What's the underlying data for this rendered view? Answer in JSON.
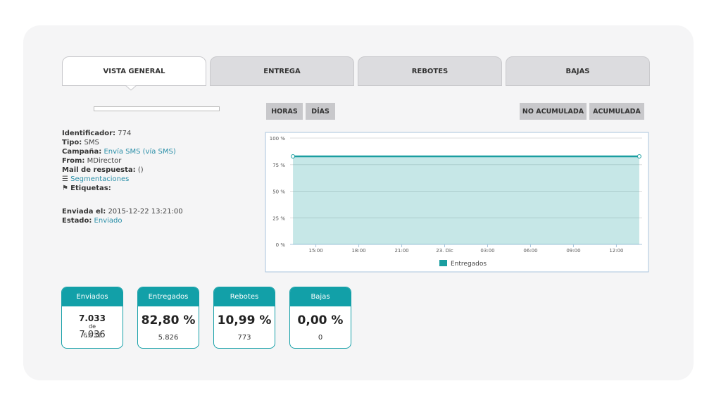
{
  "tabs": [
    "VISTA GENERAL",
    "ENTREGA",
    "REBOTES",
    "BAJAS"
  ],
  "buttons": {
    "left": [
      "HORAS",
      "DÍAS"
    ],
    "right": [
      "NO ACUMULADA",
      "ACUMULADA"
    ]
  },
  "info": [
    {
      "label": "Identificador:",
      "value": "774"
    },
    {
      "label": "Tipo:",
      "value": "SMS"
    },
    {
      "label": "Campaña:",
      "value": "Envía SMS (vía SMS)"
    },
    {
      "label": "From:",
      "value": "MDirector"
    },
    {
      "label": "Mail de respuesta:",
      "value": "()"
    }
  ],
  "segmentaciones": "Segmentaciones",
  "etiquetas": "Etiquetas:",
  "status": [
    {
      "label": "Enviada el:",
      "value": "2015-12-22 13:21:00"
    },
    {
      "label": "Estado:",
      "value": "Enviado"
    }
  ],
  "chart_data": {
    "type": "line",
    "x": [
      13.4,
      37.6
    ],
    "series": [
      {
        "name": "Entregados",
        "color": "#1a9ea0",
        "values": [
          82.8,
          82.8
        ]
      }
    ],
    "xlim": [
      13.2,
      37.8
    ],
    "xticks": [
      {
        "value": 15,
        "label": "15:00"
      },
      {
        "value": 18,
        "label": "18:00"
      },
      {
        "value": 21,
        "label": "21:00"
      },
      {
        "value": 24,
        "label": "23. Dic"
      },
      {
        "value": 27,
        "label": "03:00"
      },
      {
        "value": 30,
        "label": "06:00"
      },
      {
        "value": 33,
        "label": "09:00"
      },
      {
        "value": 36,
        "label": "12:00"
      }
    ],
    "ylim": [
      0,
      100
    ],
    "yticks": [
      {
        "value": 0,
        "label": "0 %"
      },
      {
        "value": 25,
        "label": "25 %"
      },
      {
        "value": 50,
        "label": "50 %"
      },
      {
        "value": 75,
        "label": "75 %"
      },
      {
        "value": 100,
        "label": "100 %"
      }
    ],
    "grid": true
  },
  "cards": [
    {
      "title": "Enviados",
      "main": "7.033",
      "sub": "de",
      "extra": [
        "7.036",
        "6.931"
      ]
    },
    {
      "title": "Entregados",
      "main": "82,80 %",
      "sub": "5.826"
    },
    {
      "title": "Rebotes",
      "main": "10,99 %",
      "sub": "773"
    },
    {
      "title": "Bajas",
      "main": "0,00 %",
      "sub": "0"
    }
  ]
}
